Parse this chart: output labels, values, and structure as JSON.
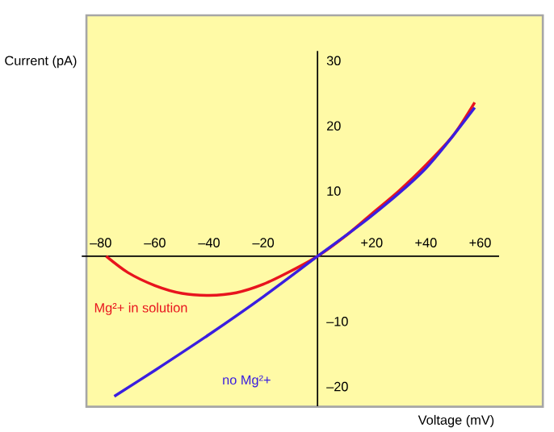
{
  "chart_data": {
    "type": "line",
    "xlabel": "Voltage (mV)",
    "ylabel": "Current (pA)",
    "xlim": [
      -87,
      67
    ],
    "ylim": [
      -23,
      31.5
    ],
    "xticks": [
      {
        "value": -80,
        "label": "–80"
      },
      {
        "value": -60,
        "label": "–60"
      },
      {
        "value": -40,
        "label": "–40"
      },
      {
        "value": -20,
        "label": "–20"
      },
      {
        "value": 20,
        "label": "+20"
      },
      {
        "value": 40,
        "label": "+40"
      },
      {
        "value": 60,
        "label": "+60"
      }
    ],
    "yticks": [
      {
        "value": -20,
        "label": "–20"
      },
      {
        "value": -10,
        "label": "–10"
      },
      10,
      20,
      30
    ],
    "grid": false,
    "marker": "none",
    "line_style": "solid",
    "series": [
      {
        "name": "Mg²+ in solution",
        "color": "#e8141e",
        "x": [
          -78,
          -70,
          -60,
          -50,
          -40,
          -30,
          -20,
          -10,
          0,
          10,
          20,
          30,
          40,
          50,
          58
        ],
        "values": [
          0,
          -2.5,
          -4.5,
          -5.7,
          -6,
          -5.6,
          -4.3,
          -2.3,
          0,
          3,
          6.5,
          10,
          14,
          18.5,
          23.6
        ]
      },
      {
        "name": "no Mg²+",
        "color": "#3a1ee0",
        "x": [
          -75,
          -60,
          -40,
          -20,
          0,
          20,
          40,
          58
        ],
        "values": [
          -21.5,
          -17.5,
          -12,
          -6.2,
          0,
          6.2,
          13.5,
          22.8
        ]
      }
    ]
  }
}
